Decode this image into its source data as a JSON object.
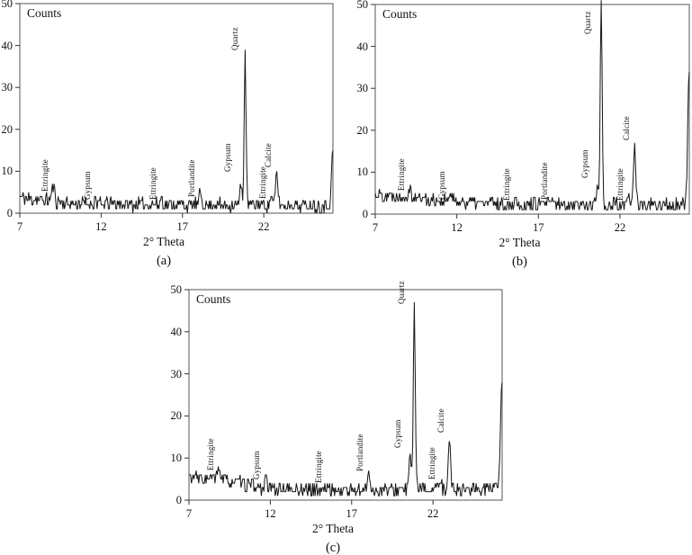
{
  "page": {
    "background": "#ffffff",
    "text_color": "#111111",
    "frame_color": "#555555"
  },
  "chart_data": [
    {
      "type": "line",
      "id": "a",
      "title": "Counts",
      "xlabel": "2° Theta",
      "ylabel": "",
      "caption": "(a)",
      "legend": "none",
      "grid": false,
      "xlim": [
        7,
        26.25
      ],
      "ylim": [
        0,
        50
      ],
      "xticks": [
        7,
        12,
        17,
        22
      ],
      "yticks": [
        0,
        10,
        20,
        30,
        40,
        50
      ],
      "line_color": "#151515",
      "noise": {
        "seed": 11,
        "amplitude": 1.6,
        "step": 0.05
      },
      "baseline": [
        [
          7,
          3.8
        ],
        [
          9,
          2.8
        ],
        [
          10.5,
          2.2
        ],
        [
          17,
          2.0
        ],
        [
          26.25,
          1.9
        ]
      ],
      "peaks": [
        {
          "label": "Ettringite",
          "x": 9.05,
          "h": 3.5,
          "w": 0.12,
          "label_y": 5.2
        },
        {
          "label": "Gypsum",
          "x": 11.65,
          "h": 1.6,
          "w": 0.1,
          "label_y": 3.2
        },
        {
          "label": "Ettringite",
          "x": 15.7,
          "h": 1.8,
          "w": 0.1,
          "label_y": 3.2
        },
        {
          "label": "Portlandite",
          "x": 18.1,
          "h": 3.0,
          "w": 0.09,
          "label_y": 3.8
        },
        {
          "label": "Gypsum",
          "x": 20.6,
          "h": 5.0,
          "w": 0.09,
          "label_y": 9.8,
          "lx": 20.3
        },
        {
          "label": "Quartz",
          "x": 20.85,
          "h": 36.0,
          "w": 0.08,
          "label_y": 38.8,
          "lx": 20.75
        },
        {
          "label": "Ettringite",
          "x": 22.45,
          "h": 2.5,
          "w": 0.08,
          "label_y": 3.4
        },
        {
          "label": "Calcite",
          "x": 22.8,
          "h": 7.5,
          "w": 0.1,
          "label_y": 11.0
        },
        {
          "label": "",
          "x": 26.24,
          "h": 13.5,
          "w": 0.1,
          "label_y": 0
        }
      ]
    },
    {
      "type": "line",
      "id": "b",
      "title": "Counts",
      "xlabel": "2° Theta",
      "ylabel": "",
      "caption": "(b)",
      "legend": "none",
      "grid": false,
      "xlim": [
        7,
        26.25
      ],
      "ylim": [
        0,
        50
      ],
      "xticks": [
        7,
        12,
        17,
        22
      ],
      "yticks": [
        0,
        10,
        20,
        30,
        40,
        50
      ],
      "line_color": "#151515",
      "noise": {
        "seed": 22,
        "amplitude": 1.6,
        "step": 0.05
      },
      "baseline": [
        [
          7,
          4.8
        ],
        [
          9.5,
          4.0
        ],
        [
          11,
          3.2
        ],
        [
          13,
          2.8
        ],
        [
          16,
          2.3
        ],
        [
          26.25,
          2.0
        ]
      ],
      "peaks": [
        {
          "label": "Ettringite",
          "x": 9.1,
          "h": 2.5,
          "w": 0.12,
          "label_y": 5.6
        },
        {
          "label": "Gypsum",
          "x": 11.6,
          "h": 1.8,
          "w": 0.1,
          "label_y": 3.5
        },
        {
          "label": "Ettringite",
          "x": 15.6,
          "h": 1.2,
          "w": 0.09,
          "label_y": 3.2
        },
        {
          "label": "Portlandite",
          "x": 17.9,
          "h": 1.2,
          "w": 0.09,
          "label_y": 3.5
        },
        {
          "label": "Gypsum",
          "x": 20.6,
          "h": 4.0,
          "w": 0.09,
          "label_y": 8.6,
          "lx": 20.38
        },
        {
          "label": "Quartz",
          "x": 20.85,
          "h": 49.0,
          "w": 0.085,
          "label_y": 43.0,
          "lx": 20.55
        },
        {
          "label": "Ettringite",
          "x": 22.5,
          "h": 2.0,
          "w": 0.08,
          "label_y": 3.2
        },
        {
          "label": "Calcite",
          "x": 22.9,
          "h": 14.5,
          "w": 0.1,
          "label_y": 17.5
        },
        {
          "label": "",
          "x": 26.24,
          "h": 31.0,
          "w": 0.12,
          "label_y": 0
        }
      ]
    },
    {
      "type": "line",
      "id": "c",
      "title": "Counts",
      "xlabel": "2° Theta",
      "ylabel": "",
      "caption": "(c)",
      "legend": "none",
      "grid": false,
      "xlim": [
        7,
        26.25
      ],
      "ylim": [
        0,
        50
      ],
      "xticks": [
        7,
        12,
        17,
        22
      ],
      "yticks": [
        0,
        10,
        20,
        30,
        40,
        50
      ],
      "line_color": "#151515",
      "noise": {
        "seed": 33,
        "amplitude": 1.6,
        "step": 0.05
      },
      "baseline": [
        [
          7,
          5.5
        ],
        [
          9.5,
          4.5
        ],
        [
          11.5,
          3.0
        ],
        [
          14,
          2.4
        ],
        [
          18,
          2.3
        ],
        [
          22,
          2.6
        ],
        [
          26.25,
          2.8
        ]
      ],
      "peaks": [
        {
          "label": "Ettringite",
          "x": 8.85,
          "h": 3.0,
          "w": 0.12,
          "label_y": 7.0
        },
        {
          "label": "Gypsum",
          "x": 11.7,
          "h": 2.0,
          "w": 0.1,
          "label_y": 5.0
        },
        {
          "label": "Ettringite",
          "x": 15.5,
          "h": 1.5,
          "w": 0.09,
          "label_y": 4.0
        },
        {
          "label": "Portlandite",
          "x": 18.05,
          "h": 5.0,
          "w": 0.09,
          "label_y": 6.8
        },
        {
          "label": "Gypsum",
          "x": 20.6,
          "h": 8.0,
          "w": 0.1,
          "label_y": 12.5,
          "lx": 20.35
        },
        {
          "label": "Quartz",
          "x": 20.85,
          "h": 43.0,
          "w": 0.085,
          "label_y": 46.5,
          "lx": 20.6
        },
        {
          "label": "Ettringite",
          "x": 22.45,
          "h": 2.5,
          "w": 0.08,
          "label_y": 5.0
        },
        {
          "label": "Calcite",
          "x": 23.0,
          "h": 12.0,
          "w": 0.1,
          "label_y": 16.0
        },
        {
          "label": "",
          "x": 26.24,
          "h": 26.0,
          "w": 0.12,
          "label_y": 0
        }
      ]
    }
  ]
}
